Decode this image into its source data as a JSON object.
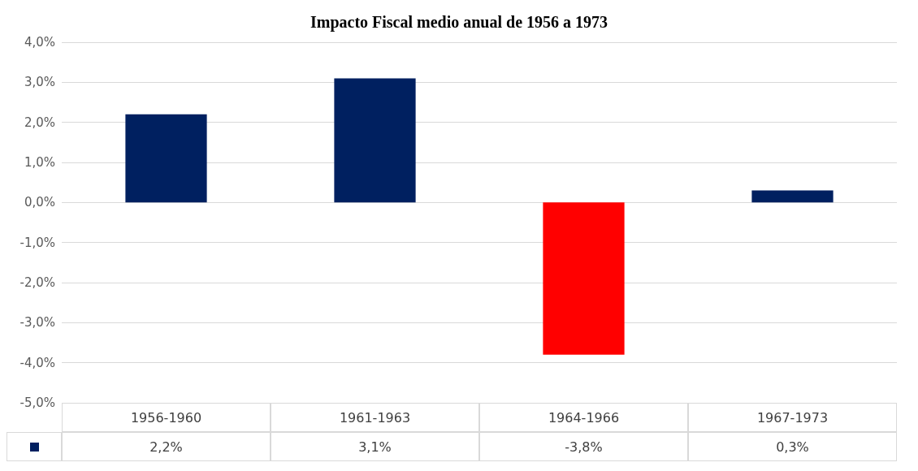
{
  "chart_data": {
    "type": "bar",
    "title": "Impacto Fiscal medio anual de 1956 a 1973",
    "categories": [
      "1956-1960",
      "1961-1963",
      "1964-1966",
      "1967-1973"
    ],
    "values": [
      2.2,
      3.1,
      -3.8,
      0.3
    ],
    "value_labels": [
      "2,2%",
      "3,1%",
      "-3,8%",
      "0,3%"
    ],
    "colors": [
      "#002060",
      "#002060",
      "#ff0000",
      "#002060"
    ],
    "ylim": [
      -5,
      4
    ],
    "yticks": [
      {
        "value": -5,
        "label": "-5,0%"
      },
      {
        "value": -4,
        "label": "-4,0%"
      },
      {
        "value": -3,
        "label": "-3,0%"
      },
      {
        "value": -2,
        "label": "-2,0%"
      },
      {
        "value": -1,
        "label": "-1,0%"
      },
      {
        "value": 0,
        "label": "0,0%"
      },
      {
        "value": 1,
        "label": "1,0%"
      },
      {
        "value": 2,
        "label": "2,0%"
      },
      {
        "value": 3,
        "label": "3,0%"
      },
      {
        "value": 4,
        "label": "4,0%"
      }
    ],
    "grid": "y"
  }
}
